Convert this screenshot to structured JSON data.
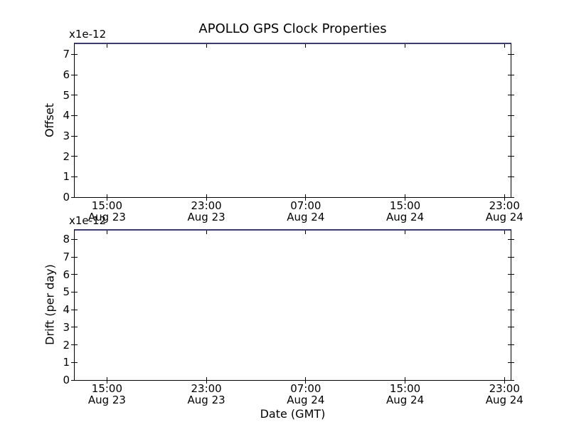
{
  "figure": {
    "background_color": "#ffffff",
    "spine_color": "#000000",
    "text_color": "#000000"
  },
  "chart_data": [
    {
      "type": "line",
      "id": "offset",
      "title": "APOLLO GPS Clock Properties",
      "ylabel": "Offset",
      "y_offset_text": "x1e-12",
      "y_unit_scale": "1e-12",
      "yticks": [
        0,
        1,
        2,
        3,
        4,
        5,
        6,
        7
      ],
      "ylim": [
        0,
        7.5
      ],
      "xticks": [
        {
          "hours": 15,
          "time": "15:00",
          "date": "Aug 23"
        },
        {
          "hours": 23,
          "time": "23:00",
          "date": "Aug 23"
        },
        {
          "hours": 31,
          "time": "07:00",
          "date": "Aug 24"
        },
        {
          "hours": 39,
          "time": "15:00",
          "date": "Aug 24"
        },
        {
          "hours": 47,
          "time": "23:00",
          "date": "Aug 24"
        }
      ],
      "xlim_hours": [
        12.4,
        47.5
      ],
      "hours_reference": "hours since Aug 23 00:00 GMT",
      "grid": false,
      "legend": false,
      "series": [
        {
          "name": "offset",
          "color": "#3c3c6b",
          "description": "flat dark-blue line running along the entire top edge of the axes (data at/above the upper y-limit, scale x1e-12); plot interior otherwise empty"
        }
      ]
    },
    {
      "type": "line",
      "id": "drift",
      "ylabel": "Drift (per day)",
      "xlabel": "Date (GMT)",
      "y_offset_text": "x1e-12",
      "y_unit_scale": "1e-12",
      "yticks": [
        0,
        1,
        2,
        3,
        4,
        5,
        6,
        7,
        8
      ],
      "ylim": [
        0,
        8.5
      ],
      "xticks": [
        {
          "hours": 15,
          "time": "15:00",
          "date": "Aug 23"
        },
        {
          "hours": 23,
          "time": "23:00",
          "date": "Aug 23"
        },
        {
          "hours": 31,
          "time": "07:00",
          "date": "Aug 24"
        },
        {
          "hours": 39,
          "time": "15:00",
          "date": "Aug 24"
        },
        {
          "hours": 47,
          "time": "23:00",
          "date": "Aug 24"
        }
      ],
      "xlim_hours": [
        12.4,
        47.5
      ],
      "hours_reference": "hours since Aug 23 00:00 GMT",
      "grid": false,
      "legend": false,
      "series": [
        {
          "name": "drift",
          "color": "#3c3c6b",
          "description": "flat dark-blue line running along the entire top edge of the axes (data at/above the upper y-limit, scale x1e-12); plot interior otherwise empty"
        }
      ]
    }
  ]
}
